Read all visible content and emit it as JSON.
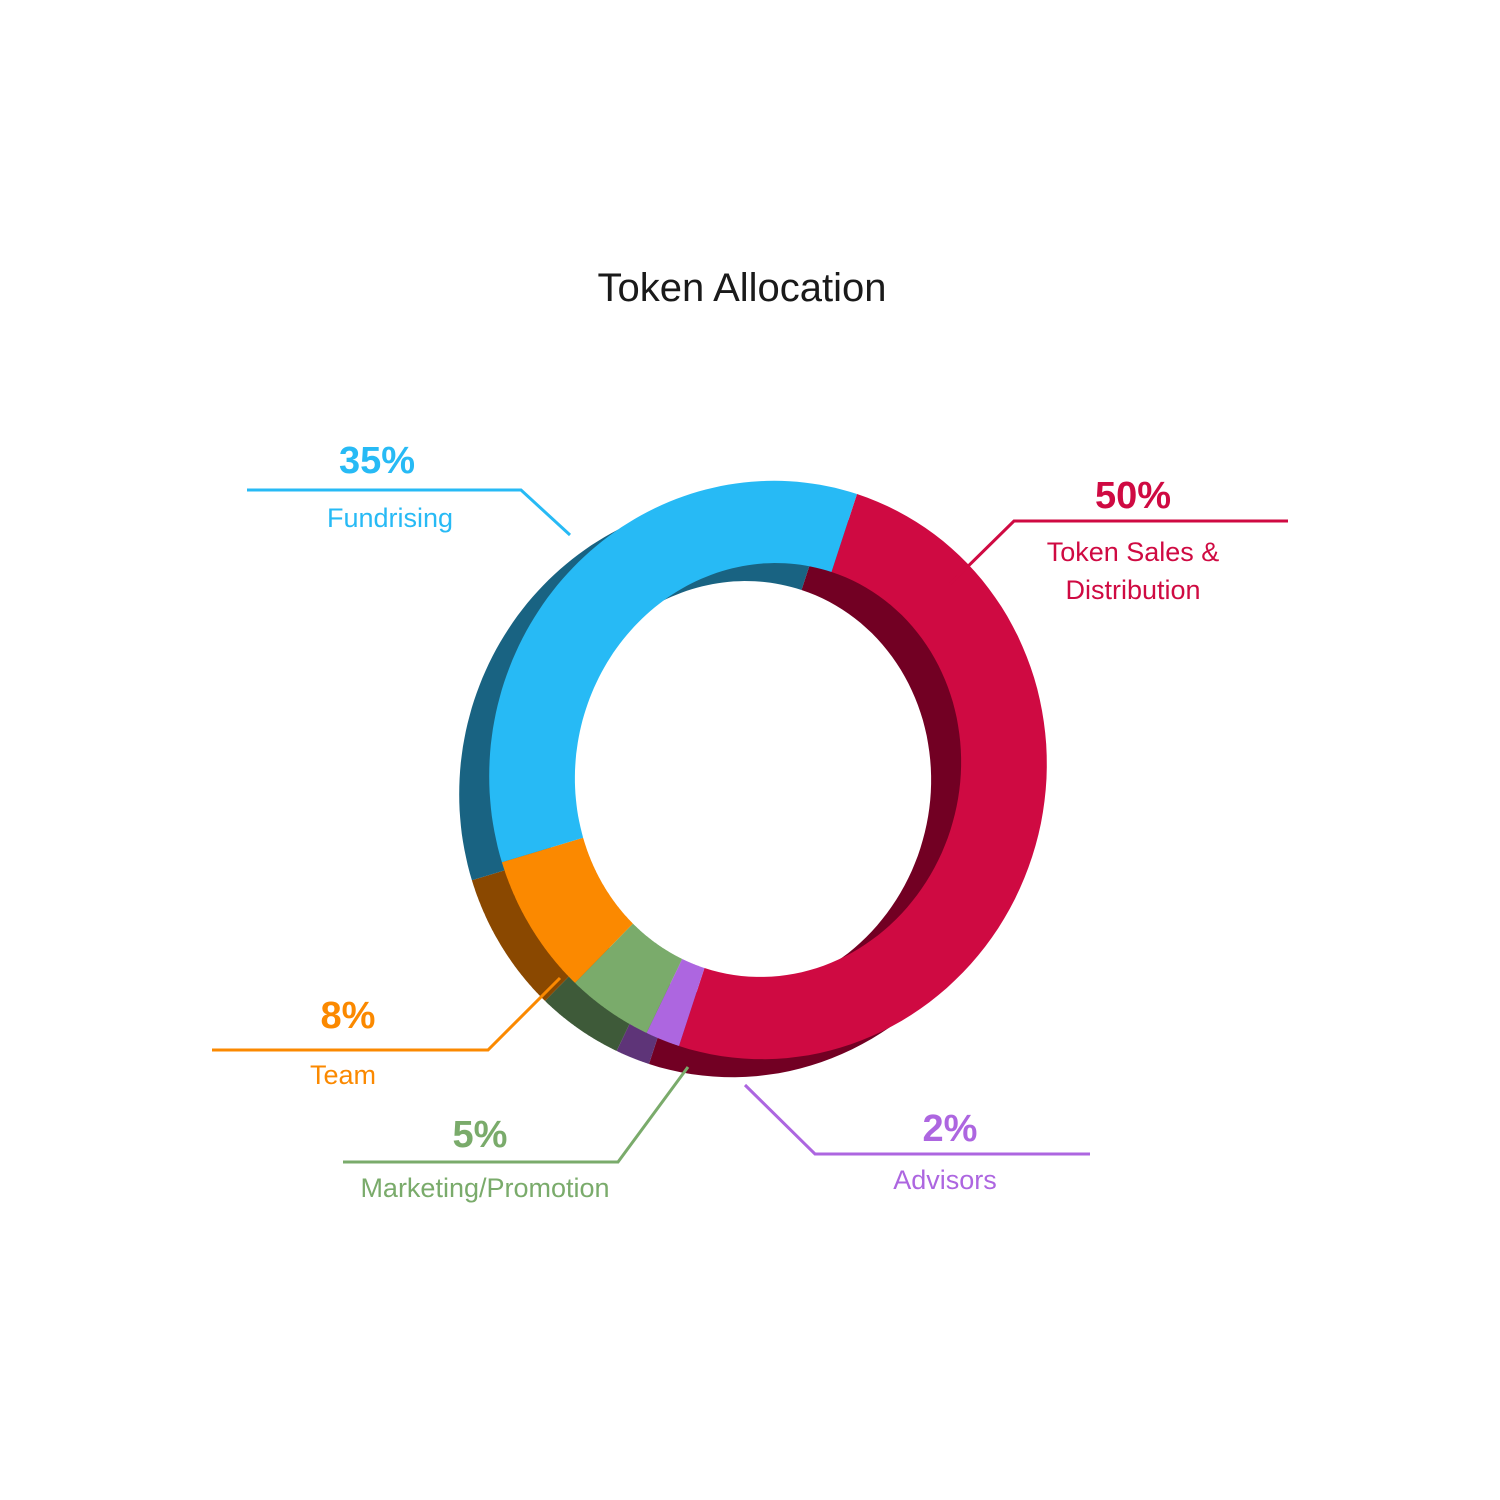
{
  "chart_data": {
    "type": "pie",
    "style": "3d-donut",
    "title": "Token Allocation",
    "legend": "none",
    "slices": [
      {
        "name": "Token Sales & Distribution",
        "name_lines": [
          "Token Sales &",
          "Distribution"
        ],
        "value": 50,
        "value_label": "50%",
        "color": "#cf0a42",
        "side_color": "#720023"
      },
      {
        "name": "Advisors",
        "name_lines": [
          "Advisors"
        ],
        "value": 2,
        "value_label": "2%",
        "color": "#ad66e0",
        "side_color": "#5e3478"
      },
      {
        "name": "Marketing/Promotion",
        "name_lines": [
          "Marketing/Promotion"
        ],
        "value": 5,
        "value_label": "5%",
        "color": "#7aab6b",
        "side_color": "#3e5a39"
      },
      {
        "name": "Team",
        "name_lines": [
          "Team"
        ],
        "value": 8,
        "value_label": "8%",
        "color": "#fb8900",
        "side_color": "#8a4800"
      },
      {
        "name": "Fundrising",
        "name_lines": [
          "Fundrising"
        ],
        "value": 35,
        "value_label": "35%",
        "color": "#27baf5",
        "side_color": "#196382"
      }
    ]
  }
}
